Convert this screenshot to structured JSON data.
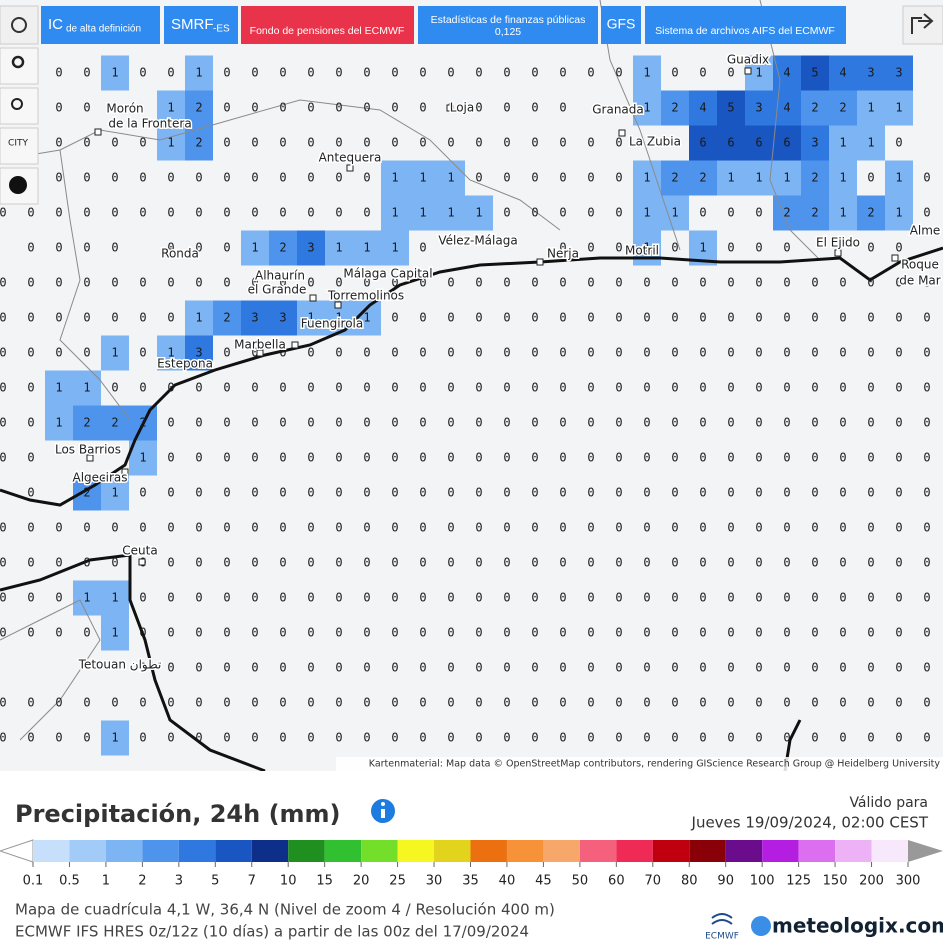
{
  "toolbar": {
    "ic": "IC",
    "ic_sub": "de alta definición",
    "smrf": "SMRF",
    "smrf_sub": "-ES",
    "pension": "Fondo de pensiones del ECMWF",
    "stats": "Estadísticas de finanzas públicas",
    "stats_sub": "0,125",
    "gfs": "GFS",
    "aifs": "Sistema de archivos AIFS del ECMWF",
    "city": "CITY"
  },
  "cities": [
    "Guadix",
    "Morón",
    "de la Frontera",
    "Loja",
    "Granada",
    "La Zubia",
    "Antequera",
    "Vélez-Málaga",
    "Nerja",
    "Motril",
    "El Ejido",
    "Alme",
    "Roque",
    "de Mar",
    "Ronda",
    "Alhaurín",
    "el Grande",
    "Málaga Capital",
    "Torremolinos",
    "Fuengirola",
    "Marbella",
    "Estepona",
    "Los Barrios",
    "Algeciras",
    "Ceuta",
    "Tetouan تطوان"
  ],
  "attribution": "Kartenmaterial: Map data © OpenStreetMap contributors, rendering GIScience Research Group @ Heidelberg University",
  "grid": {
    "rows": [
      [
        null,
        null,
        0,
        0,
        1,
        0,
        0,
        1,
        0,
        0,
        0,
        0,
        0,
        0,
        0,
        0,
        0,
        0,
        0,
        0,
        0,
        0,
        0,
        1,
        0,
        0,
        0,
        1,
        4,
        5,
        4,
        3,
        3,
        null
      ],
      [
        null,
        0,
        0,
        0,
        null,
        null,
        1,
        2,
        0,
        0,
        0,
        0,
        0,
        0,
        0,
        0,
        0,
        0,
        0,
        0,
        0,
        null,
        null,
        1,
        2,
        4,
        5,
        3,
        4,
        2,
        2,
        1,
        1,
        null
      ],
      [
        null,
        0,
        0,
        0,
        0,
        0,
        1,
        2,
        0,
        0,
        0,
        0,
        0,
        0,
        0,
        0,
        0,
        0,
        0,
        0,
        0,
        0,
        0,
        null,
        null,
        6,
        6,
        6,
        6,
        3,
        1,
        1,
        0,
        null
      ],
      [
        null,
        0,
        0,
        0,
        0,
        0,
        0,
        0,
        0,
        0,
        0,
        0,
        0,
        0,
        1,
        1,
        1,
        0,
        0,
        0,
        0,
        0,
        0,
        1,
        2,
        2,
        1,
        1,
        1,
        2,
        1,
        0,
        1,
        0
      ],
      [
        0,
        0,
        0,
        0,
        0,
        0,
        0,
        0,
        0,
        0,
        0,
        0,
        0,
        0,
        1,
        1,
        1,
        1,
        0,
        0,
        0,
        0,
        0,
        1,
        1,
        0,
        0,
        0,
        2,
        2,
        1,
        2,
        1,
        0
      ],
      [
        null,
        0,
        0,
        0,
        0,
        null,
        0,
        0,
        0,
        1,
        2,
        3,
        1,
        1,
        1,
        0,
        null,
        null,
        null,
        null,
        0,
        0,
        0,
        1,
        0,
        1,
        0,
        0,
        0,
        null,
        null,
        0,
        0,
        null
      ],
      [
        0,
        0,
        0,
        0,
        0,
        0,
        0,
        0,
        0,
        0,
        0,
        0,
        0,
        0,
        0,
        0,
        0,
        0,
        0,
        0,
        0,
        0,
        0,
        0,
        0,
        0,
        0,
        0,
        0,
        0,
        0,
        0,
        0,
        0
      ],
      [
        0,
        0,
        0,
        0,
        0,
        0,
        0,
        1,
        2,
        3,
        3,
        1,
        1,
        1,
        0,
        0,
        0,
        0,
        0,
        0,
        0,
        0,
        0,
        0,
        0,
        0,
        0,
        0,
        0,
        0,
        0,
        0,
        0,
        0
      ],
      [
        0,
        0,
        0,
        0,
        1,
        0,
        1,
        3,
        0,
        0,
        0,
        0,
        0,
        0,
        0,
        0,
        0,
        0,
        0,
        0,
        0,
        0,
        0,
        0,
        0,
        0,
        0,
        0,
        0,
        0,
        0,
        0,
        0,
        0
      ],
      [
        0,
        0,
        1,
        1,
        0,
        0,
        0,
        0,
        0,
        0,
        0,
        0,
        0,
        0,
        0,
        0,
        0,
        0,
        0,
        0,
        0,
        0,
        0,
        0,
        0,
        0,
        0,
        0,
        0,
        0,
        0,
        0,
        0,
        0
      ],
      [
        0,
        0,
        1,
        2,
        2,
        2,
        0,
        0,
        0,
        0,
        0,
        0,
        0,
        0,
        0,
        0,
        0,
        0,
        0,
        0,
        0,
        0,
        0,
        0,
        0,
        0,
        0,
        0,
        0,
        0,
        0,
        0,
        0,
        0
      ],
      [
        0,
        0,
        null,
        null,
        null,
        1,
        0,
        0,
        0,
        0,
        0,
        0,
        0,
        0,
        0,
        0,
        0,
        0,
        0,
        0,
        0,
        0,
        0,
        0,
        0,
        0,
        0,
        0,
        0,
        0,
        0,
        0,
        0,
        0
      ],
      [
        null,
        0,
        null,
        2,
        1,
        0,
        0,
        0,
        0,
        0,
        0,
        0,
        0,
        0,
        0,
        0,
        0,
        0,
        0,
        0,
        0,
        0,
        0,
        0,
        0,
        0,
        0,
        0,
        0,
        0,
        0,
        0,
        0,
        0
      ],
      [
        0,
        0,
        0,
        0,
        0,
        0,
        0,
        0,
        0,
        0,
        0,
        0,
        0,
        0,
        0,
        0,
        0,
        0,
        0,
        0,
        0,
        0,
        0,
        0,
        0,
        0,
        0,
        0,
        0,
        0,
        0,
        0,
        0,
        0
      ],
      [
        0,
        0,
        0,
        0,
        0,
        0,
        0,
        0,
        0,
        0,
        0,
        0,
        0,
        0,
        0,
        0,
        0,
        0,
        0,
        0,
        0,
        0,
        0,
        0,
        0,
        0,
        0,
        0,
        0,
        0,
        0,
        0,
        0,
        0
      ],
      [
        0,
        0,
        0,
        1,
        1,
        0,
        0,
        0,
        0,
        0,
        0,
        0,
        0,
        0,
        0,
        0,
        0,
        0,
        0,
        0,
        0,
        0,
        0,
        0,
        0,
        0,
        0,
        0,
        0,
        0,
        0,
        0,
        0,
        0
      ],
      [
        0,
        0,
        0,
        0,
        1,
        0,
        0,
        0,
        0,
        0,
        0,
        0,
        0,
        0,
        0,
        0,
        0,
        0,
        0,
        0,
        0,
        0,
        0,
        0,
        0,
        0,
        0,
        0,
        0,
        0,
        0,
        0,
        0,
        0
      ],
      [
        null,
        null,
        null,
        null,
        null,
        0,
        0,
        0,
        0,
        0,
        0,
        0,
        0,
        0,
        0,
        0,
        0,
        0,
        0,
        0,
        0,
        0,
        0,
        0,
        0,
        0,
        0,
        0,
        0,
        0,
        0,
        0,
        0,
        0
      ],
      [
        0,
        0,
        0,
        0,
        0,
        0,
        0,
        0,
        0,
        0,
        0,
        0,
        0,
        0,
        0,
        0,
        0,
        0,
        0,
        0,
        0,
        0,
        0,
        0,
        0,
        0,
        0,
        0,
        0,
        0,
        0,
        0,
        0,
        0
      ],
      [
        0,
        0,
        0,
        0,
        1,
        0,
        0,
        0,
        0,
        0,
        0,
        0,
        0,
        0,
        0,
        0,
        0,
        0,
        0,
        0,
        0,
        0,
        0,
        0,
        0,
        0,
        0,
        0,
        0,
        0,
        0,
        0,
        0,
        0
      ]
    ]
  },
  "legend": {
    "title": "Precipitación, 24h (mm)",
    "valid": "Válido para",
    "date": "Jueves 19/09/2024, 02:00 CEST",
    "ticks": [
      0.1,
      0.5,
      1,
      2,
      3,
      5,
      7,
      10,
      15,
      20,
      25,
      30,
      35,
      40,
      45,
      50,
      60,
      70,
      80,
      90,
      100,
      125,
      150,
      200,
      300
    ],
    "colors": [
      "#c6e0fb",
      "#a2cbf7",
      "#7db4f3",
      "#4f94ec",
      "#2e78e0",
      "#1956c2",
      "#0d2f8a",
      "#1f8f1f",
      "#30c030",
      "#74df2a",
      "#f6f620",
      "#e2d31c",
      "#ec6f10",
      "#f79238",
      "#f8a76a",
      "#f5607c",
      "#ee2a55",
      "#c0000f",
      "#8a0008",
      "#6b0c8c",
      "#b31ee0",
      "#dc6ef0",
      "#edb2f5",
      "#f8e8fb"
    ]
  },
  "footer": {
    "line1": "Mapa de cuadrícula 4,1 W, 36,4 N (Nivel de zoom 4 / Resolución 400 m)",
    "line2": "ECMWF IFS HRES 0z/12z (10 días) a partir de las 00z del 17/09/2024",
    "ecmwf": "ECMWF",
    "brand": "meteologix.com"
  }
}
